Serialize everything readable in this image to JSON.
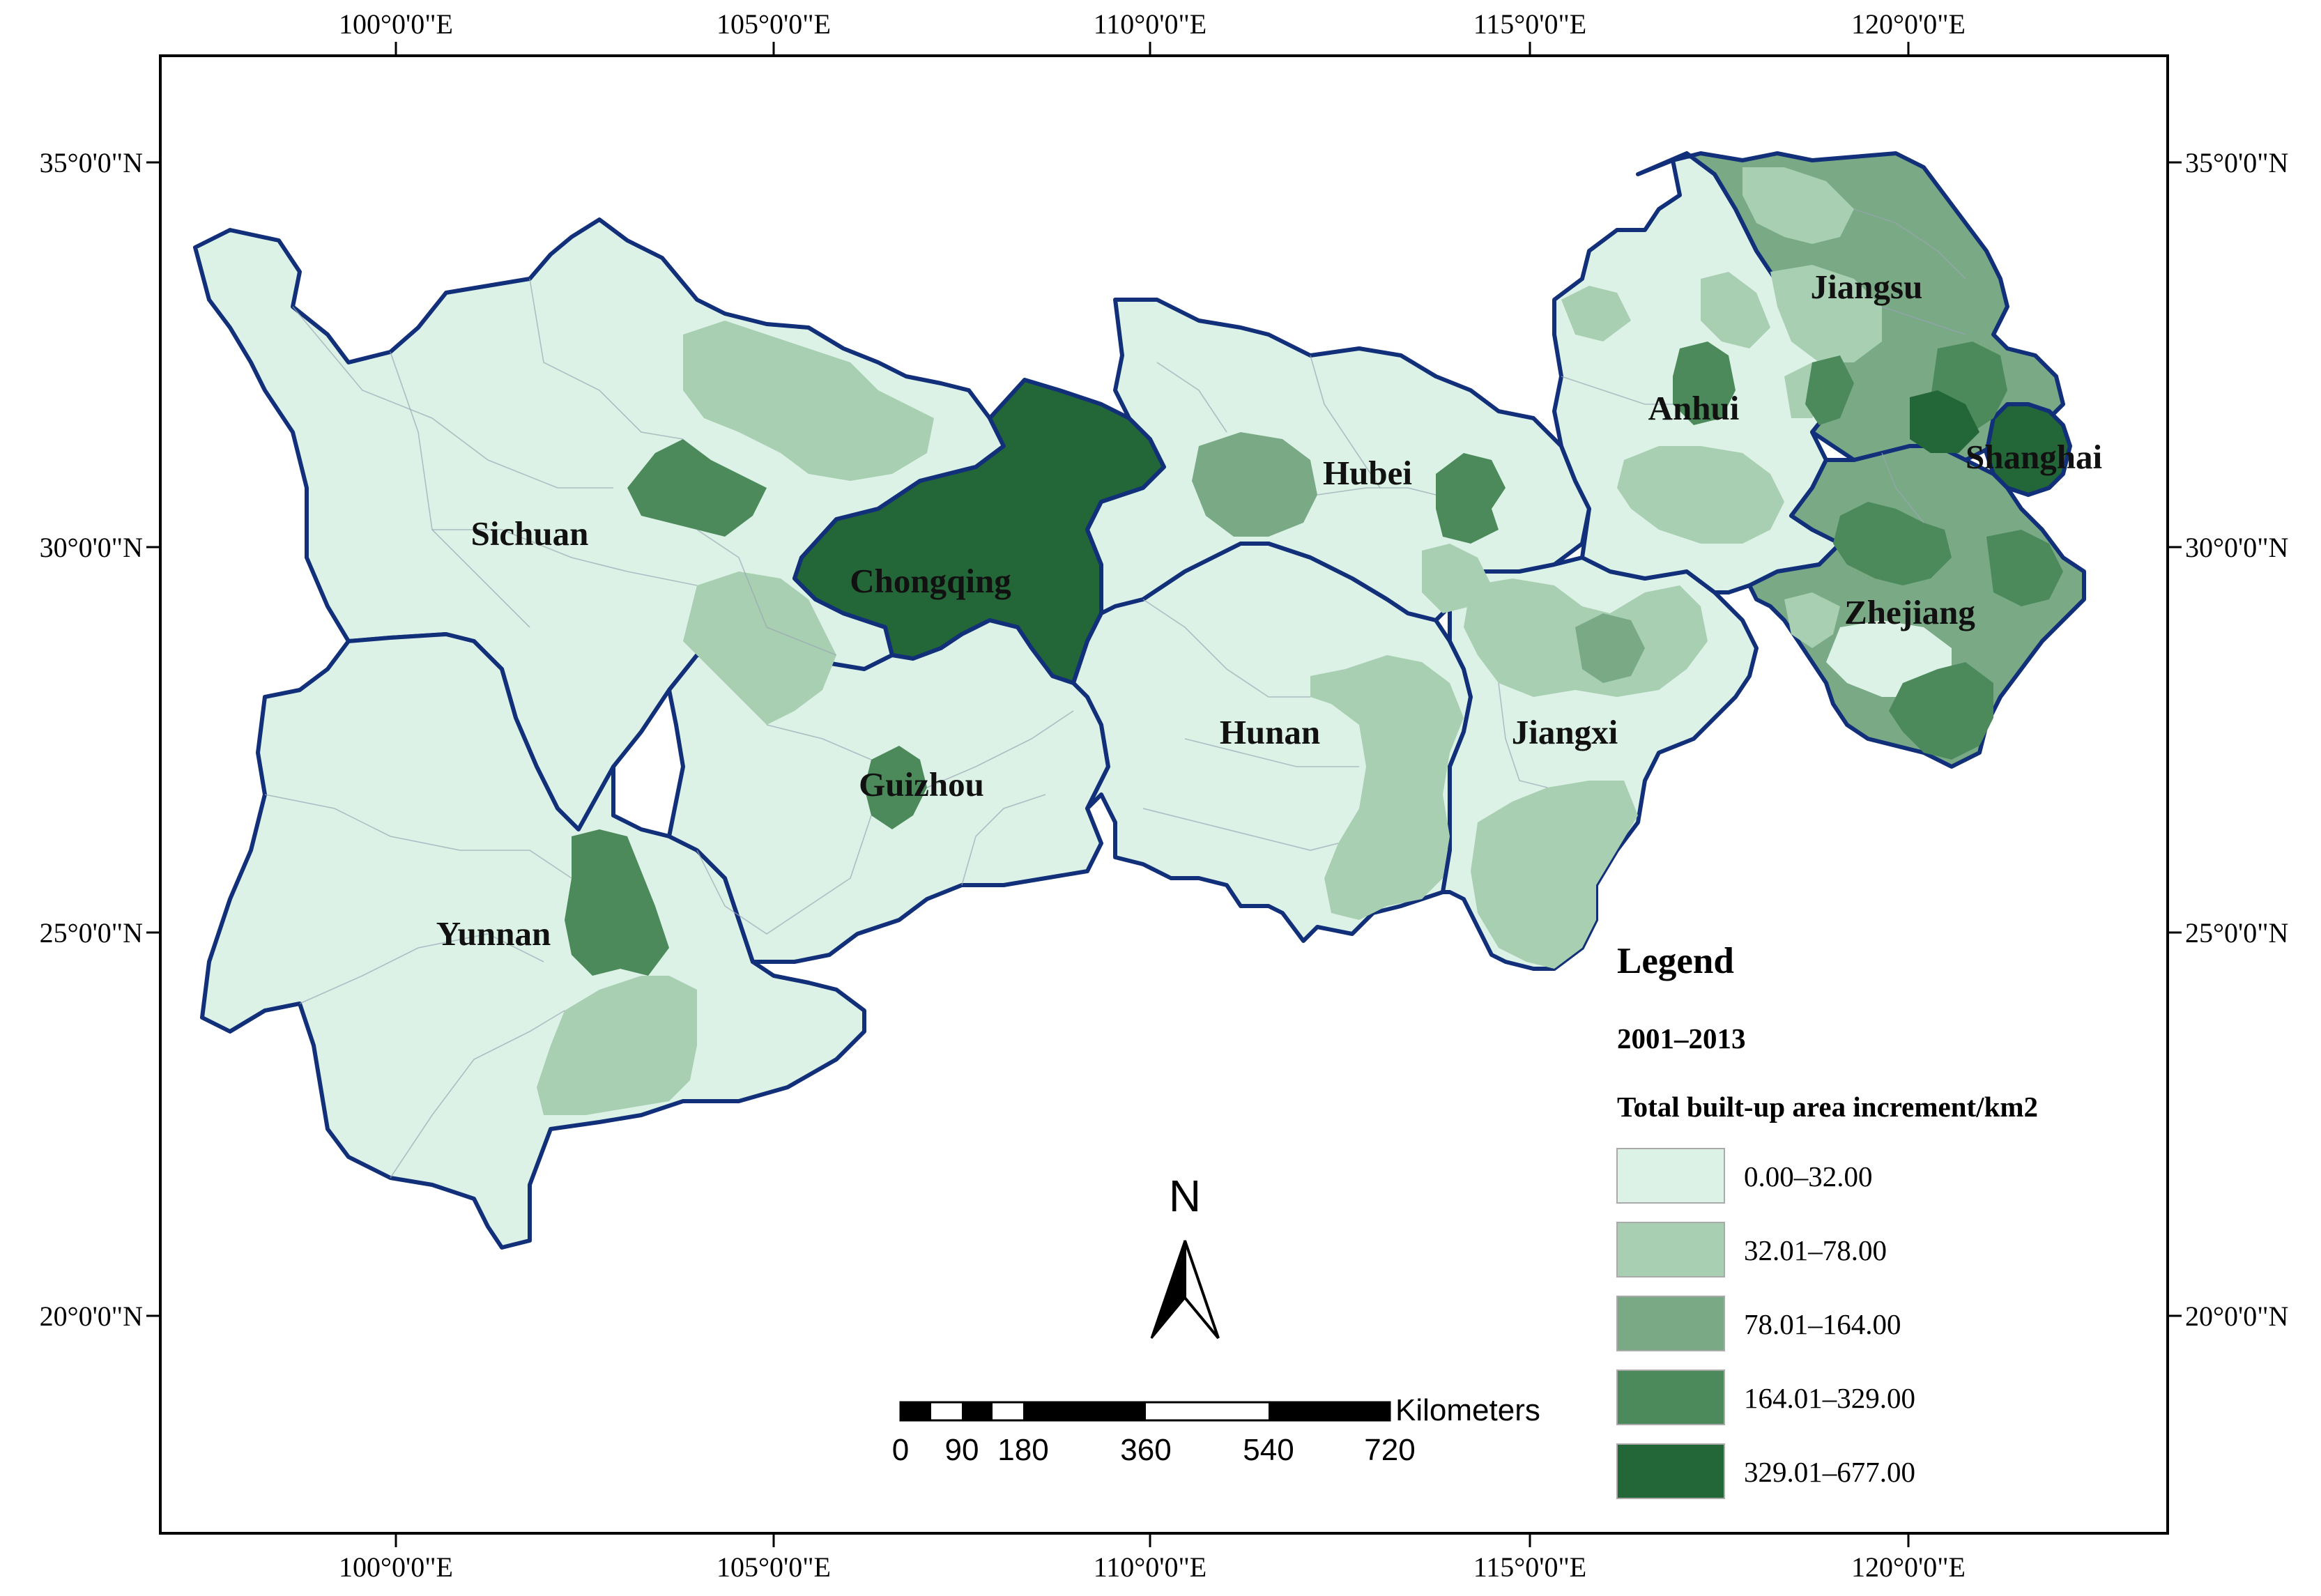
{
  "map": {
    "longitude_labels": [
      "100°0'0\"E",
      "105°0'0\"E",
      "110°0'0\"E",
      "115°0'0\"E",
      "120°0'0\"E"
    ],
    "latitude_labels": [
      "35°0'0\"N",
      "30°0'0\"N",
      "25°0'0\"N",
      "20°0'0\"N"
    ],
    "provinces": [
      {
        "name": "Sichuan",
        "class": 1
      },
      {
        "name": "Chongqing",
        "class": 5
      },
      {
        "name": "Yunnan",
        "class": 1
      },
      {
        "name": "Guizhou",
        "class": 1
      },
      {
        "name": "Hubei",
        "class": 1
      },
      {
        "name": "Hunan",
        "class": 1
      },
      {
        "name": "Jiangxi",
        "class": 1
      },
      {
        "name": "Anhui",
        "class": 1
      },
      {
        "name": "Jiangsu",
        "class": 3
      },
      {
        "name": "Shanghai",
        "class": 5
      },
      {
        "name": "Zhejiang",
        "class": 3
      }
    ]
  },
  "legend": {
    "title": "Legend",
    "period": "2001–2013",
    "variable": "Total built-up area increment/km2",
    "classes": [
      {
        "label": "0.00–32.00",
        "color": "#dcf2e6"
      },
      {
        "label": "32.01–78.00",
        "color": "#a8cfb2"
      },
      {
        "label": "78.01–164.00",
        "color": "#79a985"
      },
      {
        "label": "164.01–329.00",
        "color": "#4c8a5c"
      },
      {
        "label": "329.01–677.00",
        "color": "#236638"
      }
    ]
  },
  "north_arrow": {
    "label": "N"
  },
  "scale_bar": {
    "unit": "Kilometers",
    "ticks": [
      "0",
      "90",
      "180",
      "360",
      "540",
      "720"
    ]
  },
  "colors": {
    "province_border": "#12307a",
    "frame": "#000000"
  }
}
